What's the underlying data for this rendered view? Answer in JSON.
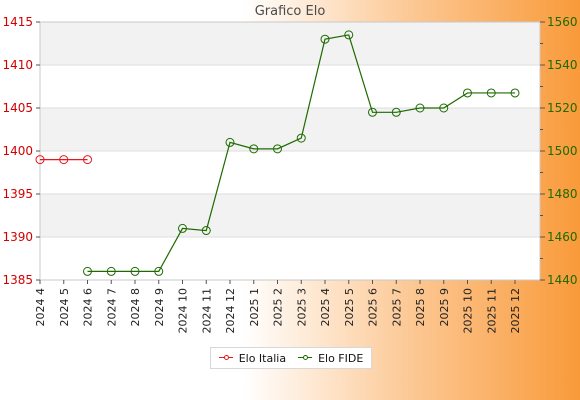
{
  "chart_data": {
    "type": "line",
    "title": "Grafico Elo",
    "categories": [
      "2024 4",
      "2024 5",
      "2024 6",
      "2024 7",
      "2024 8",
      "2024 9",
      "2024 10",
      "2024 11",
      "2024 12",
      "2025 1",
      "2025 2",
      "2025 3",
      "2025 4",
      "2025 5",
      "2025 6",
      "2025 7",
      "2025 8",
      "2025 9",
      "2025 10",
      "2025 11",
      "2025 12"
    ],
    "left_axis": {
      "ylim": [
        1385,
        1415
      ],
      "ticks": [
        1385,
        1390,
        1395,
        1400,
        1405,
        1410,
        1415
      ],
      "color": "#d40000"
    },
    "right_axis": {
      "ylim": [
        1440,
        1560
      ],
      "ticks": [
        1440,
        1460,
        1480,
        1500,
        1520,
        1540,
        1560
      ],
      "color": "#1d6b00"
    },
    "grid": true,
    "legend_position": "bottom",
    "series": [
      {
        "name": "Elo Italia",
        "axis": "left",
        "color": "#e8151b",
        "values": [
          1399,
          1399,
          1399,
          null,
          null,
          null,
          null,
          null,
          null,
          null,
          null,
          null,
          null,
          null,
          null,
          null,
          null,
          null,
          null,
          null,
          null
        ]
      },
      {
        "name": "Elo FIDE",
        "axis": "right",
        "color": "#1d6b00",
        "values": [
          null,
          null,
          1444,
          1444,
          1444,
          1444,
          1464,
          1463,
          1504,
          1501,
          1501,
          1506,
          1552,
          1554,
          1518,
          1518,
          1520,
          1520,
          1527,
          1527,
          1527
        ]
      }
    ]
  }
}
